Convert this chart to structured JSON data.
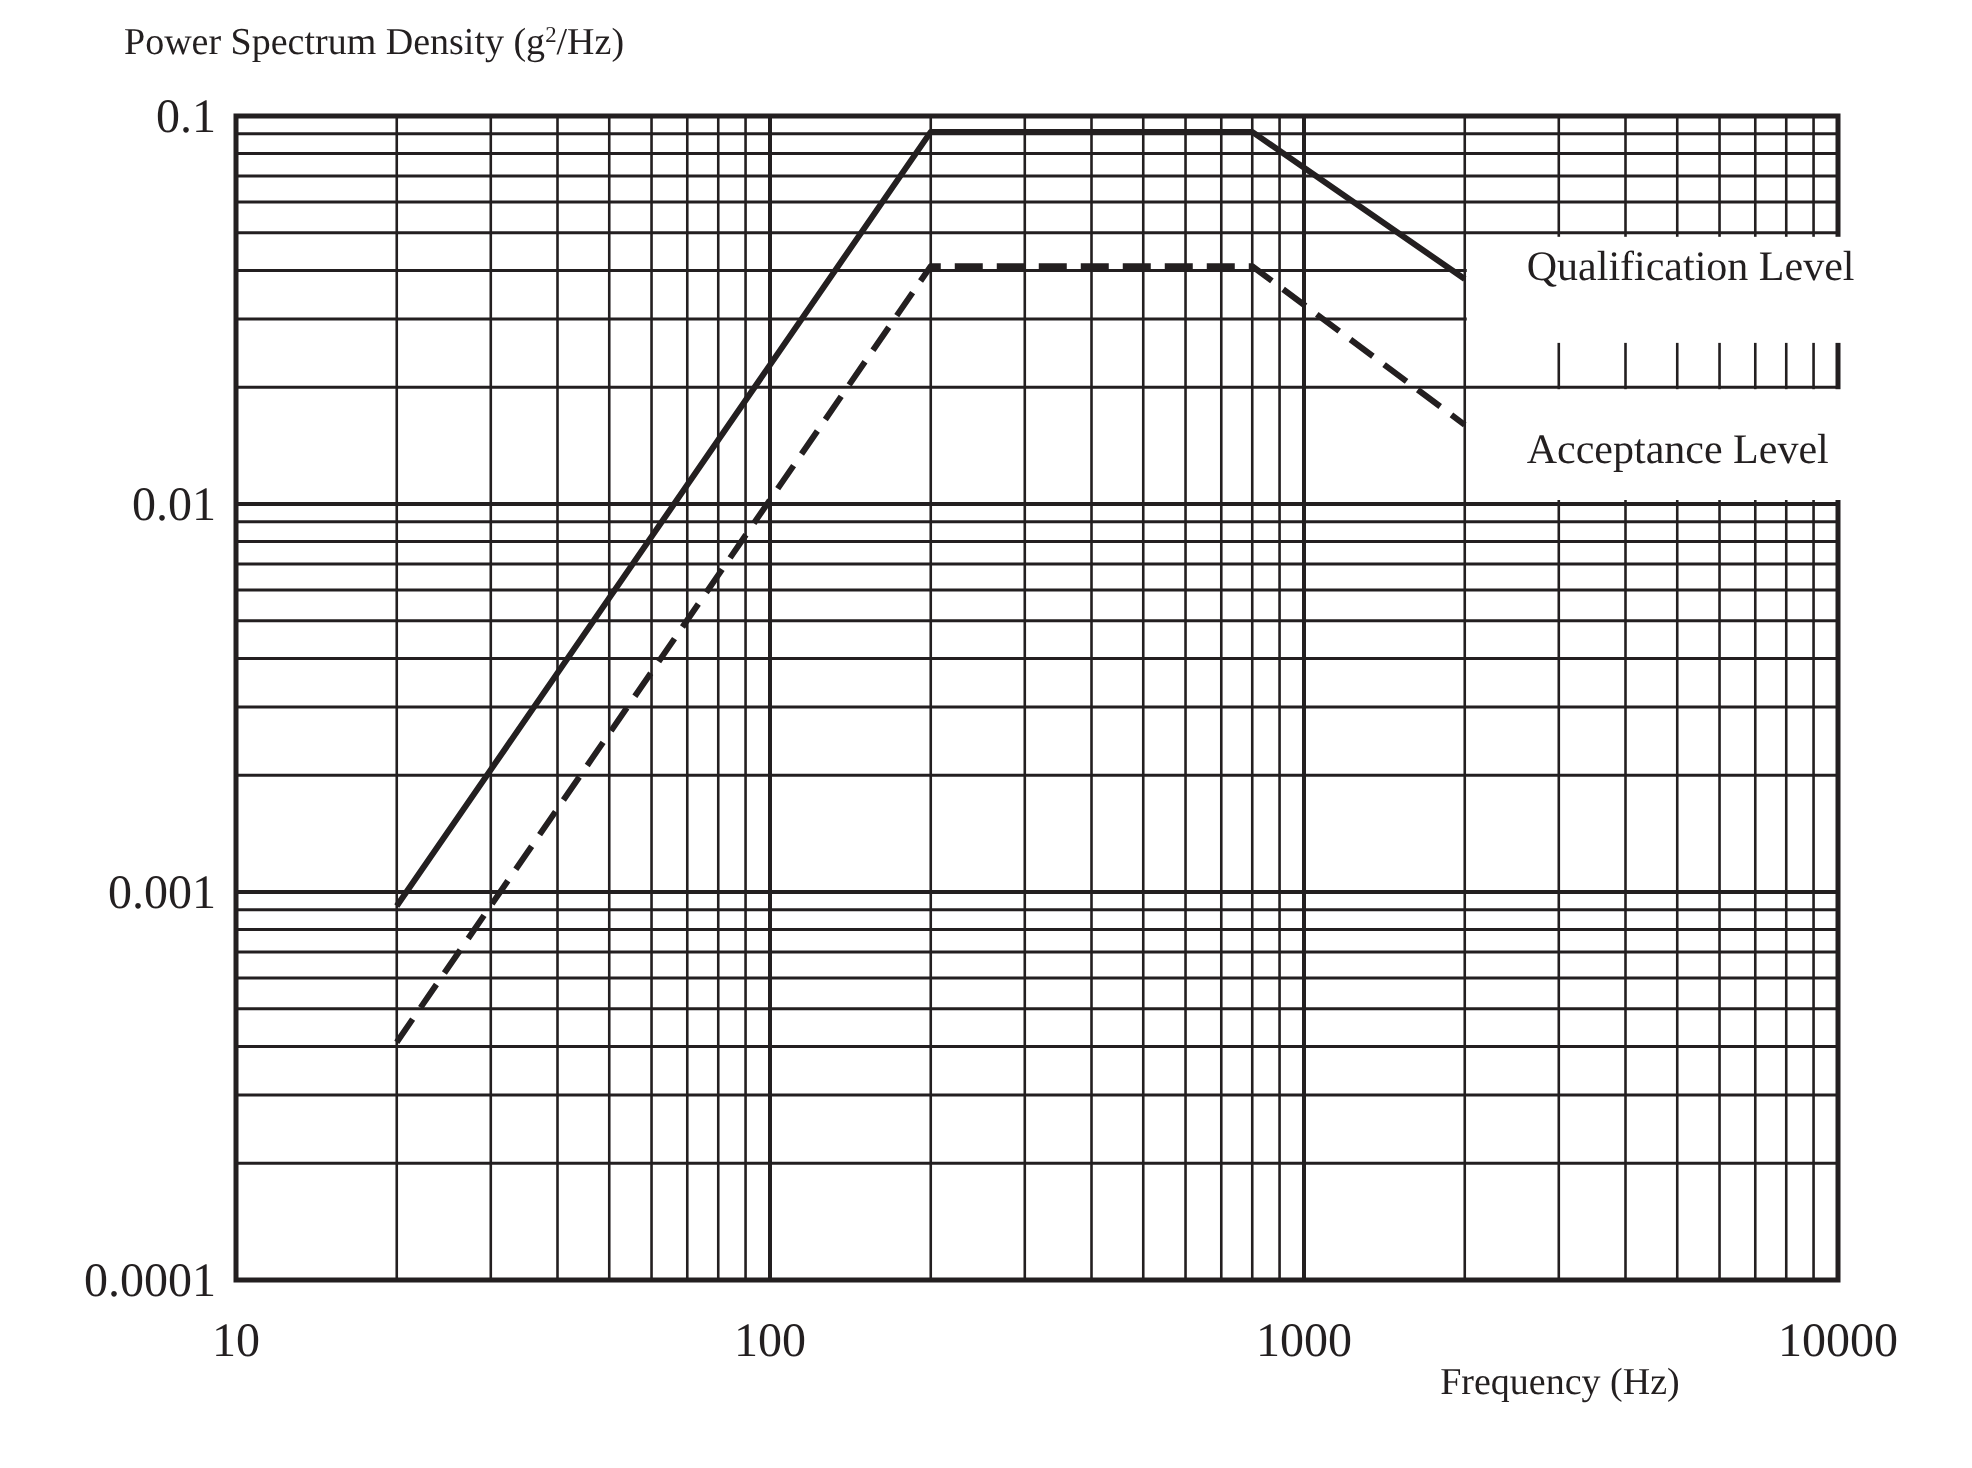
{
  "chart_data": {
    "type": "line",
    "xlabel": "Frequency (Hz)",
    "ylabel": "Power Spectrum Density (g$^{2}$/Hz)",
    "log": "xy",
    "grid": true,
    "legend": "right",
    "xlim": [
      10,
      10000
    ],
    "ylim": [
      0.0001,
      0.1
    ],
    "xticks": [
      10,
      100,
      1000,
      10000
    ],
    "yticks": [
      0.0001,
      0.001,
      0.01,
      0.1
    ],
    "series": [
      {
        "name": "Qualification Level",
        "color": "#231f20",
        "line_style": "solid",
        "x": [
          20,
          200,
          800,
          2000
        ],
        "values": [
          0.00092,
          0.091,
          0.091,
          0.038
        ]
      },
      {
        "name": "Acceptance Level",
        "color": "#231f20",
        "line_style": "dashed",
        "x": [
          20,
          200,
          800,
          2000
        ],
        "values": [
          0.00041,
          0.041,
          0.041,
          0.016
        ]
      }
    ]
  }
}
